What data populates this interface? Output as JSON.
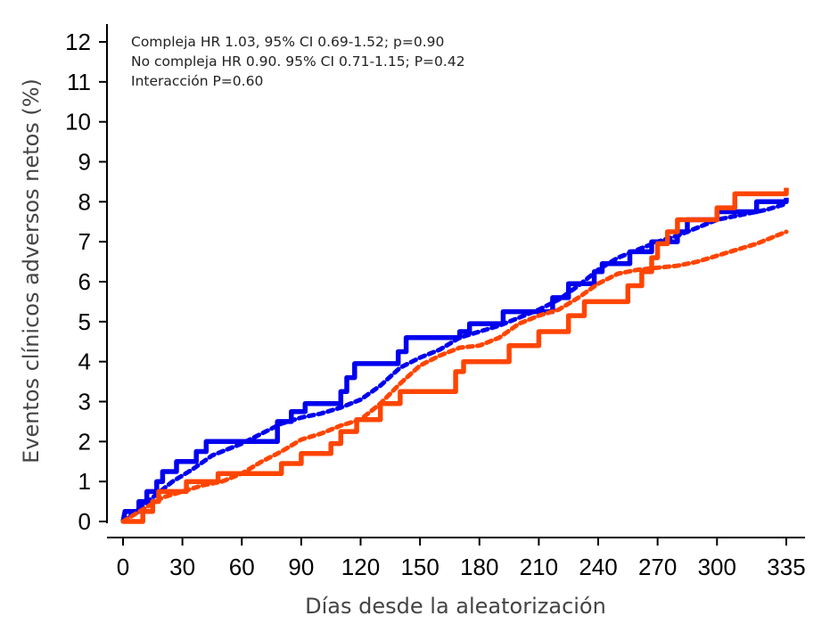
{
  "chart_data": {
    "type": "line",
    "title": "",
    "xlabel": "Días desde la aleatorización",
    "ylabel": "Eventos clínicos adversos netos (%)",
    "xticks": [
      0,
      30,
      60,
      90,
      120,
      150,
      180,
      210,
      240,
      270,
      300,
      335
    ],
    "yticks": [
      0,
      1,
      2,
      3,
      4,
      5,
      6,
      7,
      8,
      9,
      10,
      11,
      12
    ],
    "xlim": [
      0,
      335
    ],
    "ylim": [
      0,
      12
    ],
    "grid": false,
    "legend": "none",
    "annotations": [
      "Compleja HR 1.03, 95% CI 0.69-1.52; p=0.90",
      "No compleja HR 0.90. 95% CI 0.71-1.15; P=0.42",
      "Interacción P=0.60"
    ],
    "series": [
      {
        "color": "#0000ee",
        "style": "solid",
        "points": [
          [
            0,
            0
          ],
          [
            1,
            0.25
          ],
          [
            8,
            0.25
          ],
          [
            8,
            0.5
          ],
          [
            12,
            0.5
          ],
          [
            12,
            0.75
          ],
          [
            17,
            0.75
          ],
          [
            17,
            1.0
          ],
          [
            20,
            1.0
          ],
          [
            20,
            1.25
          ],
          [
            27,
            1.25
          ],
          [
            27,
            1.5
          ],
          [
            37,
            1.5
          ],
          [
            37,
            1.75
          ],
          [
            42,
            1.75
          ],
          [
            42,
            2.0
          ],
          [
            78,
            2.0
          ],
          [
            78,
            2.5
          ],
          [
            85,
            2.5
          ],
          [
            85,
            2.75
          ],
          [
            92,
            2.75
          ],
          [
            92,
            2.95
          ],
          [
            110,
            2.95
          ],
          [
            110,
            3.25
          ],
          [
            113,
            3.25
          ],
          [
            113,
            3.6
          ],
          [
            117,
            3.6
          ],
          [
            117,
            3.95
          ],
          [
            139,
            3.95
          ],
          [
            139,
            4.25
          ],
          [
            143,
            4.25
          ],
          [
            143,
            4.6
          ],
          [
            170,
            4.6
          ],
          [
            170,
            4.75
          ],
          [
            175,
            4.75
          ],
          [
            175,
            4.95
          ],
          [
            192,
            4.95
          ],
          [
            192,
            5.25
          ],
          [
            217,
            5.25
          ],
          [
            217,
            5.6
          ],
          [
            225,
            5.6
          ],
          [
            225,
            5.95
          ],
          [
            238,
            5.95
          ],
          [
            238,
            6.25
          ],
          [
            242,
            6.25
          ],
          [
            242,
            6.45
          ],
          [
            256,
            6.45
          ],
          [
            256,
            6.75
          ],
          [
            267,
            6.75
          ],
          [
            267,
            7.0
          ],
          [
            280,
            7.0
          ],
          [
            280,
            7.25
          ],
          [
            285,
            7.25
          ],
          [
            285,
            7.55
          ],
          [
            300,
            7.55
          ],
          [
            300,
            7.75
          ],
          [
            320,
            7.75
          ],
          [
            320,
            8.0
          ],
          [
            335,
            8.0
          ],
          [
            335,
            8.1
          ]
        ]
      },
      {
        "color": "#0000ee",
        "style": "dashed",
        "points": [
          [
            0,
            0
          ],
          [
            5,
            0.2
          ],
          [
            15,
            0.6
          ],
          [
            25,
            1.0
          ],
          [
            35,
            1.3
          ],
          [
            45,
            1.65
          ],
          [
            60,
            1.95
          ],
          [
            70,
            2.2
          ],
          [
            80,
            2.45
          ],
          [
            90,
            2.6
          ],
          [
            100,
            2.7
          ],
          [
            110,
            2.85
          ],
          [
            120,
            3.05
          ],
          [
            130,
            3.4
          ],
          [
            140,
            3.85
          ],
          [
            150,
            4.1
          ],
          [
            160,
            4.3
          ],
          [
            170,
            4.6
          ],
          [
            180,
            4.75
          ],
          [
            190,
            4.9
          ],
          [
            200,
            5.1
          ],
          [
            210,
            5.3
          ],
          [
            220,
            5.55
          ],
          [
            230,
            5.9
          ],
          [
            240,
            6.3
          ],
          [
            250,
            6.6
          ],
          [
            260,
            6.8
          ],
          [
            270,
            7.0
          ],
          [
            280,
            7.15
          ],
          [
            290,
            7.35
          ],
          [
            300,
            7.55
          ],
          [
            315,
            7.7
          ],
          [
            325,
            7.8
          ],
          [
            335,
            7.95
          ]
        ]
      },
      {
        "color": "#ff4500",
        "style": "solid",
        "points": [
          [
            0,
            0
          ],
          [
            10,
            0
          ],
          [
            10,
            0.25
          ],
          [
            15,
            0.25
          ],
          [
            15,
            0.5
          ],
          [
            18,
            0.5
          ],
          [
            18,
            0.75
          ],
          [
            32,
            0.75
          ],
          [
            32,
            1.0
          ],
          [
            48,
            1.0
          ],
          [
            48,
            1.2
          ],
          [
            80,
            1.2
          ],
          [
            80,
            1.45
          ],
          [
            90,
            1.45
          ],
          [
            90,
            1.7
          ],
          [
            105,
            1.7
          ],
          [
            105,
            1.95
          ],
          [
            110,
            1.95
          ],
          [
            110,
            2.25
          ],
          [
            118,
            2.25
          ],
          [
            118,
            2.55
          ],
          [
            130,
            2.55
          ],
          [
            130,
            2.95
          ],
          [
            140,
            2.95
          ],
          [
            140,
            3.25
          ],
          [
            168,
            3.25
          ],
          [
            168,
            3.75
          ],
          [
            172,
            3.75
          ],
          [
            172,
            4.0
          ],
          [
            195,
            4.0
          ],
          [
            195,
            4.4
          ],
          [
            210,
            4.4
          ],
          [
            210,
            4.75
          ],
          [
            225,
            4.75
          ],
          [
            225,
            5.15
          ],
          [
            233,
            5.15
          ],
          [
            233,
            5.5
          ],
          [
            255,
            5.5
          ],
          [
            255,
            5.9
          ],
          [
            262,
            5.9
          ],
          [
            262,
            6.25
          ],
          [
            267,
            6.25
          ],
          [
            267,
            6.6
          ],
          [
            270,
            6.6
          ],
          [
            270,
            6.95
          ],
          [
            275,
            6.95
          ],
          [
            275,
            7.25
          ],
          [
            280,
            7.25
          ],
          [
            280,
            7.55
          ],
          [
            300,
            7.55
          ],
          [
            300,
            7.85
          ],
          [
            309,
            7.85
          ],
          [
            309,
            8.2
          ],
          [
            335,
            8.2
          ],
          [
            335,
            8.35
          ]
        ]
      },
      {
        "color": "#ff4500",
        "style": "dashed",
        "points": [
          [
            0,
            0
          ],
          [
            10,
            0.3
          ],
          [
            20,
            0.6
          ],
          [
            30,
            0.75
          ],
          [
            40,
            0.9
          ],
          [
            50,
            1.0
          ],
          [
            60,
            1.2
          ],
          [
            70,
            1.5
          ],
          [
            80,
            1.75
          ],
          [
            90,
            2.05
          ],
          [
            100,
            2.2
          ],
          [
            110,
            2.4
          ],
          [
            120,
            2.55
          ],
          [
            130,
            2.95
          ],
          [
            140,
            3.45
          ],
          [
            150,
            3.9
          ],
          [
            160,
            4.15
          ],
          [
            170,
            4.35
          ],
          [
            180,
            4.4
          ],
          [
            190,
            4.6
          ],
          [
            200,
            4.95
          ],
          [
            210,
            5.15
          ],
          [
            220,
            5.3
          ],
          [
            230,
            5.6
          ],
          [
            240,
            5.95
          ],
          [
            250,
            6.2
          ],
          [
            260,
            6.3
          ],
          [
            270,
            6.35
          ],
          [
            280,
            6.4
          ],
          [
            290,
            6.5
          ],
          [
            300,
            6.65
          ],
          [
            310,
            6.8
          ],
          [
            320,
            6.95
          ],
          [
            330,
            7.15
          ],
          [
            335,
            7.25
          ]
        ]
      }
    ]
  }
}
